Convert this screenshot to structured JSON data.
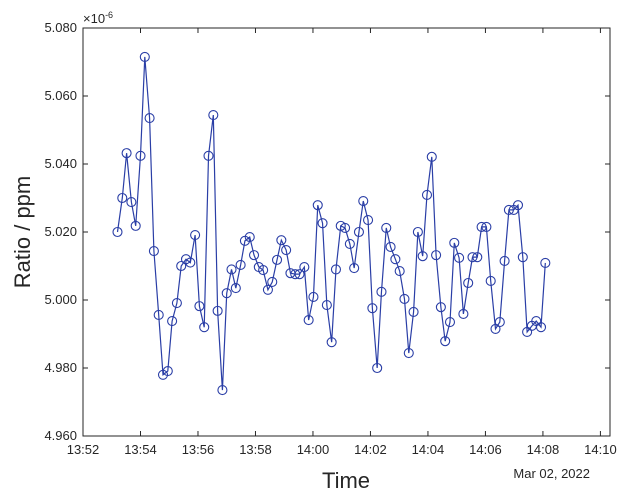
{
  "chart_data": {
    "type": "line",
    "xlabel": "Time",
    "ylabel": "Ratio / ppm",
    "date_label": "Mar 02, 2022",
    "y_multiplier": "×10",
    "y_exponent": "-6",
    "x": [
      "13:53:12",
      "13:53:22",
      "13:53:31",
      "13:53:41",
      "13:53:50",
      "13:54:00",
      "13:54:09",
      "13:54:19",
      "13:54:28",
      "13:54:38",
      "13:54:47",
      "13:54:57",
      "13:55:06",
      "13:55:16",
      "13:55:25",
      "13:55:35",
      "13:55:44",
      "13:55:54",
      "13:56:03",
      "13:56:13",
      "13:56:22",
      "13:56:32",
      "13:56:41",
      "13:56:51",
      "13:57:00",
      "13:57:10",
      "13:57:19",
      "13:57:29",
      "13:57:38",
      "13:57:48",
      "13:57:57",
      "13:58:07",
      "13:58:16",
      "13:58:26",
      "13:58:35",
      "13:58:45",
      "13:58:54",
      "13:59:04",
      "13:59:13",
      "13:59:23",
      "13:59:32",
      "13:59:42",
      "13:59:51",
      "14:00:01",
      "14:00:10",
      "14:00:20",
      "14:00:29",
      "14:00:39",
      "14:00:48",
      "14:00:58",
      "14:01:07",
      "14:01:17",
      "14:01:26",
      "14:01:36",
      "14:01:45",
      "14:01:55",
      "14:02:04",
      "14:02:14",
      "14:02:23",
      "14:02:33",
      "14:02:42",
      "14:02:52",
      "14:03:01",
      "14:03:11",
      "14:03:20",
      "14:03:30",
      "14:03:39",
      "14:03:49",
      "14:03:58",
      "14:04:08",
      "14:04:17",
      "14:04:27",
      "14:04:36",
      "14:04:46",
      "14:04:55",
      "14:05:05",
      "14:05:14",
      "14:05:24",
      "14:05:33",
      "14:05:43",
      "14:05:52",
      "14:06:02",
      "14:06:11",
      "14:06:21",
      "14:06:30",
      "14:06:40",
      "14:06:49",
      "14:06:59",
      "14:07:08",
      "14:07:18",
      "14:07:27",
      "14:07:37",
      "14:07:46",
      "14:07:56",
      "14:08:05"
    ],
    "series": [
      {
        "color": "#2a3ea6",
        "values": [
          5.02,
          5.03,
          5.0432,
          5.0288,
          5.0218,
          5.0424,
          5.0715,
          5.0535,
          5.0144,
          4.9956,
          4.978,
          4.9791,
          4.9938,
          4.9991,
          5.01,
          5.012,
          5.011,
          5.0191,
          4.9982,
          4.992,
          5.0424,
          5.0544,
          4.9968,
          4.9735,
          5.002,
          5.009,
          5.0035,
          5.0103,
          5.0174,
          5.0185,
          5.0132,
          5.0097,
          5.0088,
          5.003,
          5.0053,
          5.0118,
          5.0176,
          5.0147,
          5.0079,
          5.0076,
          5.0076,
          5.0097,
          4.9941,
          5.0009,
          5.0279,
          5.0226,
          4.9985,
          4.9876,
          5.009,
          5.0218,
          5.0212,
          5.0165,
          5.0094,
          5.02,
          5.0291,
          5.0235,
          4.9976,
          4.98,
          5.0024,
          5.0212,
          5.0156,
          5.012,
          5.0085,
          5.0003,
          4.9844,
          4.9965,
          5.02,
          5.0129,
          5.0309,
          5.0421,
          5.0132,
          4.9979,
          4.9879,
          4.9935,
          5.0168,
          5.0124,
          4.9959,
          5.005,
          5.0126,
          5.0126,
          5.0215,
          5.0215,
          5.0056,
          4.9915,
          4.9935,
          5.0115,
          5.0265,
          5.0265,
          5.0279,
          5.0126,
          4.9906,
          4.9924,
          4.9938,
          4.992,
          5.0109
        ]
      }
    ],
    "xlim": [
      "13:52:00",
      "14:10:20"
    ],
    "xticks": [
      "13:52",
      "13:54",
      "13:56",
      "13:58",
      "14:00",
      "14:02",
      "14:04",
      "14:06",
      "14:08",
      "14:10"
    ],
    "ylim": [
      4.96,
      5.08
    ],
    "yticks": [
      {
        "value": 4.96,
        "label": "4.960"
      },
      {
        "value": 4.98,
        "label": "4.980"
      },
      {
        "value": 5.0,
        "label": "5.000"
      },
      {
        "value": 5.02,
        "label": "5.020"
      },
      {
        "value": 5.04,
        "label": "5.040"
      },
      {
        "value": 5.06,
        "label": "5.060"
      },
      {
        "value": 5.08,
        "label": "5.080"
      }
    ],
    "markers": true,
    "grid": false
  }
}
